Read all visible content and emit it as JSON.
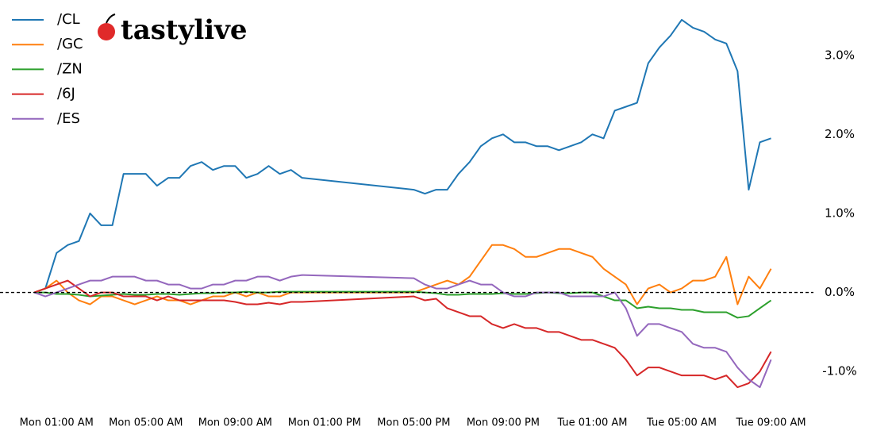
{
  "chart_data": {
    "type": "line",
    "logo": "tastylive",
    "x": [
      0,
      0.5,
      1,
      1.5,
      2,
      2.5,
      3,
      3.5,
      4,
      4.5,
      5,
      5.5,
      6,
      6.5,
      7,
      7.5,
      8,
      8.5,
      9,
      9.5,
      10,
      10.5,
      11,
      11.5,
      12,
      17,
      17.5,
      18,
      18.5,
      19,
      19.5,
      20,
      20.5,
      21,
      21.5,
      22,
      22.5,
      23,
      23.5,
      24,
      24.5,
      25,
      25.5,
      26,
      26.5,
      27,
      27.5,
      28,
      28.5,
      29,
      29.5,
      30,
      30.5,
      31,
      31.5,
      32,
      32.5,
      33
    ],
    "series": [
      {
        "name": "/CL",
        "color": "#1f77b4",
        "values": [
          0,
          0.05,
          0.5,
          0.6,
          0.65,
          1.0,
          0.85,
          0.85,
          1.5,
          1.5,
          1.5,
          1.35,
          1.45,
          1.45,
          1.6,
          1.65,
          1.55,
          1.6,
          1.6,
          1.45,
          1.5,
          1.6,
          1.5,
          1.55,
          1.45,
          1.3,
          1.25,
          1.3,
          1.3,
          1.5,
          1.65,
          1.85,
          1.95,
          2.0,
          1.9,
          1.9,
          1.85,
          1.85,
          1.8,
          1.85,
          1.9,
          2.0,
          1.95,
          2.3,
          2.35,
          2.4,
          2.9,
          3.1,
          3.25,
          3.45,
          3.35,
          3.3,
          3.2,
          3.15,
          2.8,
          1.3,
          1.9,
          1.95
        ]
      },
      {
        "name": "/GC",
        "color": "#ff7f0e",
        "values": [
          0,
          0.05,
          0.15,
          0.0,
          -0.1,
          -0.15,
          -0.05,
          -0.05,
          -0.1,
          -0.15,
          -0.1,
          -0.05,
          -0.1,
          -0.1,
          -0.15,
          -0.1,
          -0.05,
          -0.05,
          0.0,
          -0.05,
          0.0,
          -0.05,
          -0.05,
          0.0,
          0.0,
          0.0,
          0.05,
          0.1,
          0.15,
          0.1,
          0.2,
          0.4,
          0.6,
          0.6,
          0.55,
          0.45,
          0.45,
          0.5,
          0.55,
          0.55,
          0.5,
          0.45,
          0.3,
          0.2,
          0.1,
          -0.15,
          0.05,
          0.1,
          0.0,
          0.05,
          0.15,
          0.15,
          0.2,
          0.45,
          -0.15,
          0.2,
          0.05,
          0.3
        ]
      },
      {
        "name": "/ZN",
        "color": "#2ca02c",
        "values": [
          0,
          0.0,
          -0.02,
          -0.02,
          -0.03,
          -0.05,
          -0.04,
          -0.03,
          -0.02,
          -0.03,
          -0.03,
          -0.02,
          -0.02,
          -0.03,
          -0.02,
          -0.01,
          -0.01,
          0.0,
          0.0,
          0.01,
          0.0,
          0.0,
          0.01,
          0.01,
          0.01,
          0.01,
          0.0,
          -0.01,
          -0.03,
          -0.03,
          -0.02,
          -0.02,
          -0.02,
          -0.01,
          -0.02,
          -0.02,
          -0.01,
          0.0,
          -0.01,
          -0.01,
          0.0,
          0.0,
          -0.05,
          -0.1,
          -0.1,
          -0.2,
          -0.18,
          -0.2,
          -0.2,
          -0.22,
          -0.22,
          -0.25,
          -0.25,
          -0.25,
          -0.32,
          -0.3,
          -0.2,
          -0.1
        ]
      },
      {
        "name": "/6J",
        "color": "#d62728",
        "values": [
          0,
          0.05,
          0.1,
          0.15,
          0.05,
          -0.05,
          0.0,
          0.0,
          -0.05,
          -0.05,
          -0.05,
          -0.1,
          -0.05,
          -0.1,
          -0.1,
          -0.1,
          -0.1,
          -0.1,
          -0.12,
          -0.15,
          -0.15,
          -0.13,
          -0.15,
          -0.12,
          -0.12,
          -0.05,
          -0.1,
          -0.08,
          -0.2,
          -0.25,
          -0.3,
          -0.3,
          -0.4,
          -0.45,
          -0.4,
          -0.45,
          -0.45,
          -0.5,
          -0.5,
          -0.55,
          -0.6,
          -0.6,
          -0.65,
          -0.7,
          -0.85,
          -1.05,
          -0.95,
          -0.95,
          -1.0,
          -1.05,
          -1.05,
          -1.05,
          -1.1,
          -1.05,
          -1.2,
          -1.15,
          -1.0,
          -0.75
        ]
      },
      {
        "name": "/ES",
        "color": "#9467bd",
        "values": [
          0,
          -0.05,
          0.0,
          0.05,
          0.1,
          0.15,
          0.15,
          0.2,
          0.2,
          0.2,
          0.15,
          0.15,
          0.1,
          0.1,
          0.05,
          0.05,
          0.1,
          0.1,
          0.15,
          0.15,
          0.2,
          0.2,
          0.15,
          0.2,
          0.22,
          0.18,
          0.1,
          0.05,
          0.05,
          0.1,
          0.15,
          0.1,
          0.1,
          0.0,
          -0.05,
          -0.05,
          0.0,
          0.0,
          0.0,
          -0.05,
          -0.05,
          -0.05,
          -0.05,
          0.0,
          -0.2,
          -0.55,
          -0.4,
          -0.4,
          -0.45,
          -0.5,
          -0.65,
          -0.7,
          -0.7,
          -0.75,
          -0.95,
          -1.1,
          -1.2,
          -0.85
        ]
      }
    ],
    "xlim": [
      -1,
      34.9
    ],
    "xticks": [
      {
        "value": 1,
        "label": "Mon 01:00 AM"
      },
      {
        "value": 5,
        "label": "Mon 05:00 AM"
      },
      {
        "value": 9,
        "label": "Mon 09:00 AM"
      },
      {
        "value": 13,
        "label": "Mon 01:00 PM"
      },
      {
        "value": 17,
        "label": "Mon 05:00 PM"
      },
      {
        "value": 21,
        "label": "Mon 09:00 PM"
      },
      {
        "value": 25,
        "label": "Tue 01:00 AM"
      },
      {
        "value": 29,
        "label": "Tue 05:00 AM"
      },
      {
        "value": 33,
        "label": "Tue 09:00 AM"
      }
    ],
    "ylim": [
      -1.42,
      3.6
    ],
    "yticks": [
      {
        "value": -1,
        "label": "-1.0%"
      },
      {
        "value": 0,
        "label": "0.0%"
      },
      {
        "value": 1,
        "label": "1.0%"
      },
      {
        "value": 2,
        "label": "2.0%"
      },
      {
        "value": 3,
        "label": "3.0%"
      }
    ],
    "hlines": [
      0
    ],
    "legend": "upper left",
    "grid": false
  }
}
